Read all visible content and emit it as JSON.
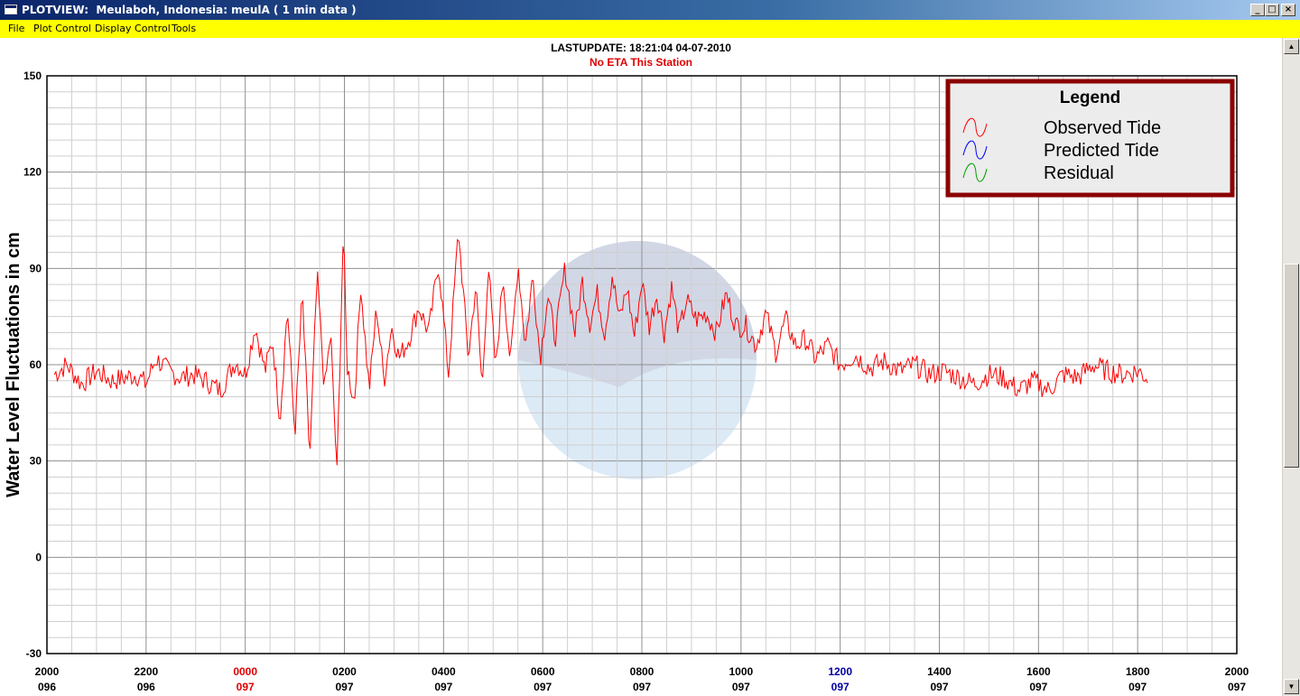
{
  "window": {
    "title": "PLOTVIEW:  Meulaboh, Indonesia: meulA ( 1 min data )",
    "buttons": {
      "minimize": "_",
      "maximize": "□",
      "close": "×"
    }
  },
  "menu": {
    "items": [
      "File",
      "Plot Control",
      "Display Control",
      "Tools"
    ]
  },
  "header": {
    "lastupdate": "LASTUPDATE: 18:21:04  04-07-2010",
    "eta": "No ETA This Station",
    "eta_color": "#e00000"
  },
  "legend": {
    "title": "Legend",
    "entries": [
      {
        "label": "Observed Tide",
        "color": "#ff0000"
      },
      {
        "label": "Predicted Tide",
        "color": "#0000ff"
      },
      {
        "label": "Residual",
        "color": "#00a000"
      }
    ],
    "border_color": "#8b0000",
    "background": "#ececec"
  },
  "chart_data": {
    "type": "line",
    "ylabel": "Water Level Fluctuations in cm",
    "ylim": [
      -30,
      150
    ],
    "yticks": [
      -30,
      0,
      30,
      60,
      90,
      120,
      150
    ],
    "xlim_hours": [
      -4,
      20
    ],
    "grid": true,
    "xticks": [
      {
        "time": "2000",
        "day": "096",
        "color": "#000000"
      },
      {
        "time": "2200",
        "day": "096",
        "color": "#000000"
      },
      {
        "time": "0000",
        "day": "097",
        "color": "#e00000"
      },
      {
        "time": "0200",
        "day": "097",
        "color": "#000000"
      },
      {
        "time": "0400",
        "day": "097",
        "color": "#000000"
      },
      {
        "time": "0600",
        "day": "097",
        "color": "#000000"
      },
      {
        "time": "0800",
        "day": "097",
        "color": "#000000"
      },
      {
        "time": "1000",
        "day": "097",
        "color": "#000000"
      },
      {
        "time": "1200",
        "day": "097",
        "color": "#0000a0"
      },
      {
        "time": "1400",
        "day": "097",
        "color": "#000000"
      },
      {
        "time": "1600",
        "day": "097",
        "color": "#000000"
      },
      {
        "time": "1800",
        "day": "097",
        "color": "#000000"
      },
      {
        "time": "2000",
        "day": "097",
        "color": "#000000"
      }
    ],
    "series": [
      {
        "name": "Observed Tide",
        "color": "#ff0000",
        "x": [
          -3.85,
          -3.6,
          -3.3,
          -3.0,
          -2.7,
          -2.4,
          -2.2,
          -2.0,
          -1.8,
          -1.55,
          -1.3,
          -1.05,
          -0.8,
          -0.5,
          -0.2,
          0.0,
          0.2,
          0.4,
          0.55,
          0.7,
          0.85,
          1.0,
          1.15,
          1.3,
          1.45,
          1.6,
          1.72,
          1.85,
          1.98,
          2.05,
          2.2,
          2.33,
          2.5,
          2.65,
          2.8,
          2.95,
          3.1,
          3.3,
          3.5,
          3.7,
          3.9,
          4.1,
          4.3,
          4.5,
          4.65,
          4.78,
          4.9,
          5.05,
          5.2,
          5.35,
          5.5,
          5.65,
          5.8,
          5.95,
          6.1,
          6.25,
          6.45,
          6.65,
          6.8,
          6.95,
          7.1,
          7.25,
          7.4,
          7.55,
          7.7,
          7.85,
          8.0,
          8.15,
          8.3,
          8.45,
          8.6,
          8.75,
          8.9,
          9.1,
          9.3,
          9.5,
          9.7,
          9.9,
          10.1,
          10.3,
          10.5,
          10.7,
          10.9,
          11.1,
          11.3,
          11.5,
          11.75,
          12.0,
          12.3,
          12.6,
          12.9,
          13.2,
          13.5,
          13.8,
          14.1,
          14.4,
          14.7,
          15.0,
          15.3,
          15.6,
          15.9,
          16.2,
          16.5,
          16.8,
          17.1,
          17.4,
          17.7,
          18.0,
          18.2
        ],
        "values": [
          57,
          60,
          54,
          58,
          55,
          56,
          57,
          54,
          62,
          58,
          56,
          57,
          55,
          52,
          61,
          57,
          72,
          58,
          68,
          43,
          78,
          38,
          82,
          30,
          88,
          52,
          70,
          26,
          103,
          60,
          48,
          85,
          52,
          78,
          55,
          72,
          62,
          68,
          78,
          70,
          92,
          57,
          102,
          62,
          85,
          52,
          92,
          58,
          88,
          60,
          92,
          66,
          88,
          62,
          82,
          68,
          90,
          70,
          86,
          73,
          82,
          70,
          88,
          74,
          84,
          69,
          86,
          72,
          82,
          70,
          84,
          70,
          80,
          74,
          76,
          70,
          82,
          72,
          72,
          66,
          76,
          64,
          74,
          66,
          68,
          62,
          66,
          60,
          63,
          59,
          61,
          58,
          60,
          57,
          58,
          56,
          54,
          57,
          56,
          52,
          55,
          52,
          57,
          56,
          60,
          58,
          57,
          58,
          56
        ]
      }
    ]
  }
}
